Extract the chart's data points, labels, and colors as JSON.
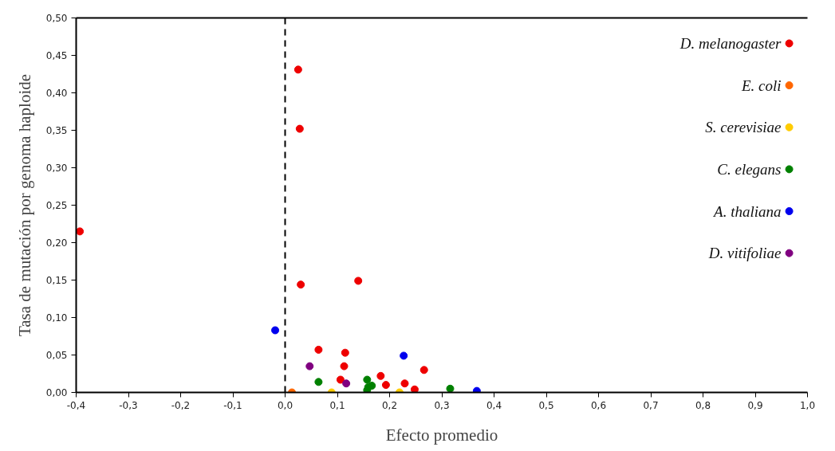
{
  "chart_data": {
    "type": "scatter",
    "xlabel": "Efecto promedio",
    "ylabel": "Tasa de mutación por genoma haploide",
    "series": [
      {
        "name": "D. melanogaster",
        "color": "#ee0000",
        "x": [
          0.025,
          0.028,
          -0.393,
          0.03,
          0.14,
          0.064,
          0.115,
          0.113,
          0.106,
          0.183,
          0.193,
          0.229,
          0.248,
          0.266
        ],
        "values": [
          0.431,
          0.352,
          0.215,
          0.144,
          0.149,
          0.057,
          0.053,
          0.035,
          0.017,
          0.022,
          0.01,
          0.012,
          0.004,
          0.03
        ]
      },
      {
        "name": "E. coli",
        "color": "#ff6600",
        "x": [
          0.013
        ],
        "values": [
          0.0
        ]
      },
      {
        "name": "S. cerevisiae",
        "color": "#ffcc00",
        "x": [
          0.089,
          0.219
        ],
        "values": [
          0.0,
          0.0
        ]
      },
      {
        "name": "C. elegans",
        "color": "#008000",
        "x": [
          0.064,
          0.157,
          0.166,
          0.159,
          0.157,
          0.316
        ],
        "values": [
          0.014,
          0.017,
          0.009,
          0.007,
          0.003,
          0.005
        ]
      },
      {
        "name": "A. thaliana",
        "color": "#0000ee",
        "x": [
          -0.019,
          0.227,
          0.367
        ],
        "values": [
          0.083,
          0.049,
          0.002
        ]
      },
      {
        "name": "D. vitifoliae",
        "color": "#800080",
        "x": [
          0.047,
          0.117
        ],
        "values": [
          0.035,
          0.012
        ]
      }
    ],
    "xlim": [
      -0.4,
      1.0
    ],
    "xticks": [
      {
        "value": -0.4,
        "label": "-0,4"
      },
      {
        "value": -0.3,
        "label": "-0,3"
      },
      {
        "value": -0.2,
        "label": "-0,2"
      },
      {
        "value": -0.1,
        "label": "-0,1"
      },
      {
        "value": 0.0,
        "label": "0,0"
      },
      {
        "value": 0.1,
        "label": "0,1"
      },
      {
        "value": 0.2,
        "label": "0,2"
      },
      {
        "value": 0.3,
        "label": "0,3"
      },
      {
        "value": 0.4,
        "label": "0,4"
      },
      {
        "value": 0.5,
        "label": "0,5"
      },
      {
        "value": 0.6,
        "label": "0,6"
      },
      {
        "value": 0.7,
        "label": "0,7"
      },
      {
        "value": 0.8,
        "label": "0,8"
      },
      {
        "value": 0.9,
        "label": "0,9"
      },
      {
        "value": 1.0,
        "label": "1,0"
      }
    ],
    "ylim": [
      0,
      0.5
    ],
    "yticks": [
      {
        "value": 0,
        "label": "0,00"
      },
      {
        "value": 0.05,
        "label": "0,05"
      },
      {
        "value": 0.1,
        "label": "0,10"
      },
      {
        "value": 0.15,
        "label": "0,15"
      },
      {
        "value": 0.2,
        "label": "0,20"
      },
      {
        "value": 0.25,
        "label": "0,25"
      },
      {
        "value": 0.3,
        "label": "0,30"
      },
      {
        "value": 0.35,
        "label": "0,35"
      },
      {
        "value": 0.4,
        "label": "0,40"
      },
      {
        "value": 0.45,
        "label": "0,45"
      },
      {
        "value": 0.5,
        "label": "0,50"
      }
    ],
    "ref_lines": [
      {
        "axis": "x",
        "value": 0.0,
        "color": "#000000",
        "line_style": "dashed"
      }
    ],
    "grid": false,
    "legend": "top right",
    "marker": "circle"
  }
}
